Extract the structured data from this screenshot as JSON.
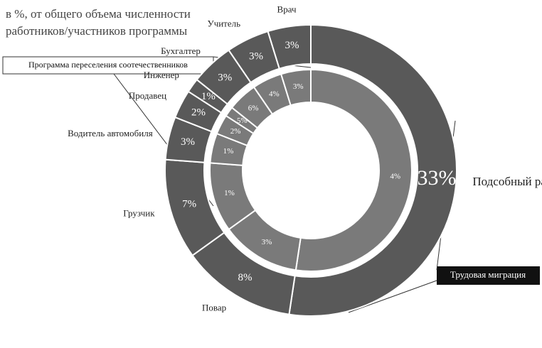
{
  "chart_data": {
    "type": "radial-ring",
    "title": "в %, от общего объема численности работников/участников программы",
    "categories": [
      "Подсобный рабочий",
      "Повар",
      "Грузчик",
      "Водитель автомобиля",
      "Продавец",
      "Инженер",
      "Бухгалтер",
      "Учитель",
      "Врач"
    ],
    "series": [
      {
        "name": "Трудовая миграция",
        "color": "#595959",
        "values": [
          33,
          8,
          7,
          3,
          2,
          1,
          3,
          3,
          3
        ]
      },
      {
        "name": "Программа переселения соотечественников",
        "color": "#7a7a7a",
        "values": [
          4,
          3,
          1,
          1,
          2,
          5,
          6,
          4,
          3
        ]
      }
    ],
    "value_labels": [
      [
        "33%",
        "8%",
        "7%",
        "3%",
        "2%",
        "1%",
        "3%",
        "3%",
        "3%"
      ],
      [
        "4%",
        "3%",
        "1%",
        "1%",
        "2%",
        "5%",
        "6%",
        "4%",
        "3%"
      ]
    ]
  }
}
